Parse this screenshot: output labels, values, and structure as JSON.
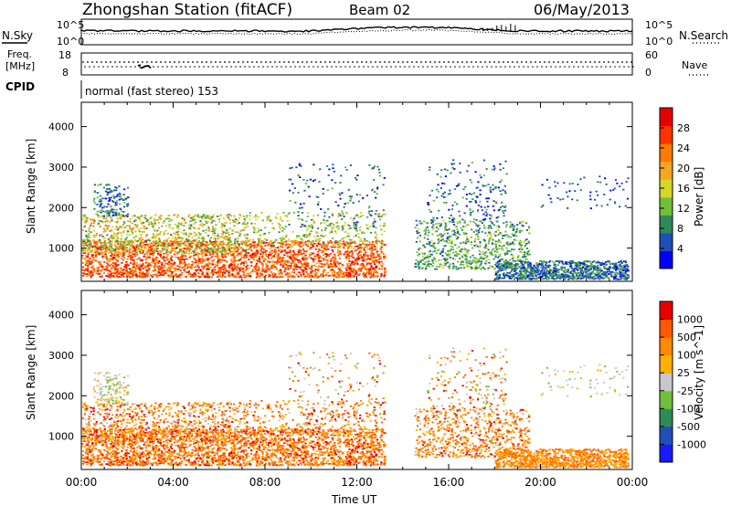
{
  "header": {
    "station": "Zhongshan Station (fitACF)",
    "beam": "Beam 02",
    "date": "06/May/2013"
  },
  "top_panels": {
    "nsky_label": "N.Sky",
    "nsearch_label": "N.Search",
    "noise_ticks_left": [
      "10^5",
      "10^0"
    ],
    "noise_ticks_right": [
      "10^5",
      "10^0"
    ],
    "freq_label_1": "Freq.",
    "freq_label_2": "[MHz]",
    "freq_ticks": [
      "18",
      "8"
    ],
    "nave_label": "Nave",
    "nave_ticks": [
      "60",
      "0"
    ],
    "cpid_label": "CPID",
    "cpid_text": "normal (fast stereo) 153"
  },
  "colors": {
    "power_scale": [
      "#0000ff",
      "#1f4fb8",
      "#2e8b57",
      "#6fbf3a",
      "#d6d62a",
      "#f5a623",
      "#ff7a00",
      "#ff3300",
      "#e60000"
    ],
    "velocity_scale": [
      "#1a1aff",
      "#1f4fb8",
      "#2e8b57",
      "#6fbf3a",
      "#c8c8c8",
      "#ffb000",
      "#ff8a00",
      "#ff5a00",
      "#e60000"
    ]
  },
  "chart_data": [
    {
      "type": "heatmap",
      "xlabel": "Time UT",
      "ylabel": "Slant Range [km]",
      "x_ticks": [
        "00:00",
        "04:00",
        "08:00",
        "12:00",
        "16:00",
        "20:00",
        "00:00"
      ],
      "xlim_hours": [
        0,
        24
      ],
      "y_ticks": [
        "1000",
        "2000",
        "3000",
        "4000"
      ],
      "ylim": [
        180,
        4600
      ],
      "colorbar_label": "Power [dB]",
      "colorbar_ticks": [
        "4",
        "8",
        "12",
        "16",
        "20",
        "24",
        "28"
      ],
      "colorbar_range": [
        0,
        30
      ]
    },
    {
      "type": "heatmap",
      "xlabel": "Time UT",
      "ylabel": "Slant Range [km]",
      "x_ticks": [
        "00:00",
        "04:00",
        "08:00",
        "12:00",
        "16:00",
        "20:00",
        "00:00"
      ],
      "xlim_hours": [
        0,
        24
      ],
      "y_ticks": [
        "1000",
        "2000",
        "3000",
        "4000"
      ],
      "ylim": [
        180,
        4600
      ],
      "colorbar_label": "Velocity [m s^-1]",
      "colorbar_ticks": [
        "1000",
        "500",
        "100",
        "25",
        "-25",
        "-100",
        "-500",
        "-1000"
      ]
    }
  ]
}
